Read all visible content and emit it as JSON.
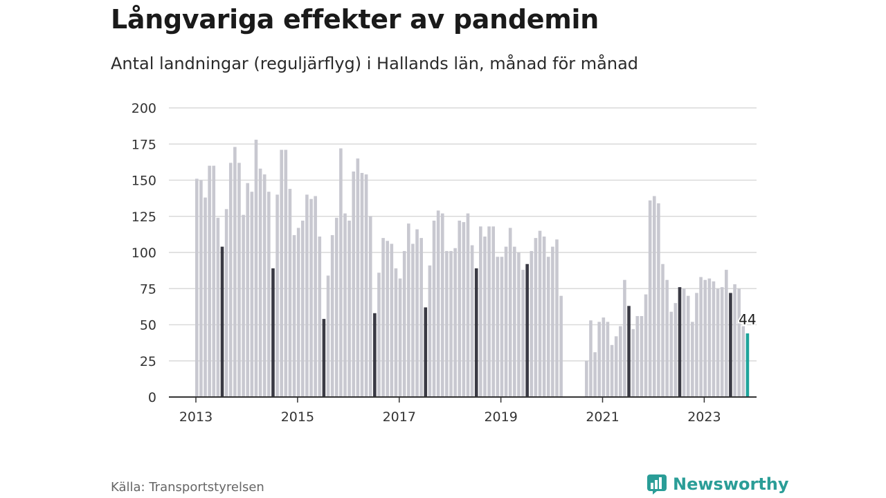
{
  "title": "Långvariga effekter av pandemin",
  "subtitle": "Antal landningar (reguljärflyg) i Hallands län, månad för månad",
  "source": "Källa: Transportstyrelsen",
  "brand": "Newsworthy",
  "colors": {
    "bar_default": "#c8c8d0",
    "bar_july": "#3a3a44",
    "bar_latest": "#1fa49b",
    "grid": "#d9d9d9",
    "axis": "#333333",
    "brand": "#2a9d97"
  },
  "chart_data": {
    "type": "bar",
    "x_start": "2013-01",
    "frequency": "monthly",
    "ylim": [
      0,
      200
    ],
    "y_ticks": [
      0,
      25,
      50,
      75,
      100,
      125,
      150,
      175,
      200
    ],
    "x_tick_labels": [
      "2013",
      "2015",
      "2017",
      "2019",
      "2021",
      "2023"
    ],
    "highlight": "July of each year (dark) and latest month (teal)",
    "annotation": "44",
    "grid": true,
    "values": [
      151,
      150,
      138,
      160,
      160,
      124,
      104,
      130,
      162,
      173,
      162,
      126,
      148,
      142,
      178,
      158,
      154,
      142,
      89,
      140,
      171,
      171,
      144,
      112,
      117,
      122,
      140,
      137,
      139,
      111,
      54,
      84,
      112,
      124,
      172,
      127,
      122,
      156,
      165,
      155,
      154,
      125,
      58,
      86,
      110,
      108,
      106,
      89,
      82,
      101,
      120,
      106,
      116,
      110,
      62,
      91,
      122,
      129,
      127,
      101,
      101,
      103,
      122,
      121,
      127,
      105,
      89,
      118,
      111,
      118,
      118,
      97,
      97,
      104,
      117,
      104,
      100,
      88,
      92,
      101,
      110,
      115,
      111,
      97,
      104,
      109,
      70,
      0,
      0,
      0,
      0,
      0,
      25,
      53,
      31,
      52,
      55,
      52,
      36,
      42,
      49,
      81,
      63,
      47,
      56,
      56,
      71,
      136,
      139,
      134,
      92,
      81,
      59,
      65,
      76,
      75,
      70,
      52,
      72,
      83,
      81,
      82,
      80,
      75,
      76,
      88,
      72,
      78,
      75,
      49,
      44
    ]
  }
}
